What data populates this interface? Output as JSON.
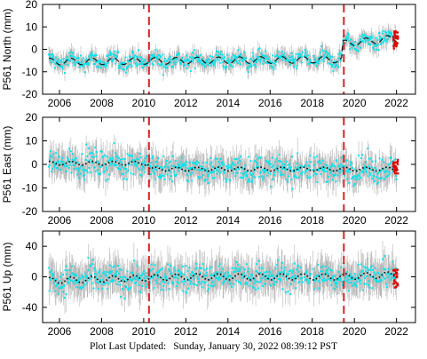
{
  "footer": {
    "label": "Plot Last Updated:",
    "timestamp": "Sunday, January 30, 2022 08:39:12 PST"
  },
  "chart_data": [
    {
      "type": "scatter",
      "ylabel": "P561 North (mm)",
      "xlim": [
        2005.2,
        2022.9
      ],
      "ylim": [
        -20,
        20
      ],
      "yticks": [
        -20,
        -10,
        0,
        10,
        20
      ],
      "xticks": [
        2006,
        2008,
        2010,
        2012,
        2014,
        2016,
        2018,
        2020,
        2022
      ],
      "model_style": "dashed",
      "baseline": [
        {
          "x": 2005.5,
          "y": -5.5
        },
        {
          "x": 2019.4,
          "y": -4.5
        },
        {
          "x": 2019.45,
          "y": 2.5
        },
        {
          "x": 2022.0,
          "y": 5.0
        }
      ],
      "seasonal_amplitude": 1.5,
      "scatter_sd": 1.8,
      "error_bar": 3.0,
      "event_lines": [
        2010.25,
        2019.5
      ],
      "recent_points": {
        "x": [
          2021.85,
          2022.08
        ],
        "y": [
          0.0,
          8.0
        ]
      }
    },
    {
      "type": "scatter",
      "ylabel": "P561 East (mm)",
      "xlim": [
        2005.2,
        2022.9
      ],
      "ylim": [
        -20,
        20
      ],
      "yticks": [
        -20,
        -10,
        0,
        10,
        20
      ],
      "xticks": [
        2006,
        2008,
        2010,
        2012,
        2014,
        2016,
        2018,
        2020,
        2022
      ],
      "model_style": "dotted",
      "baseline": [
        {
          "x": 2005.5,
          "y": 0.5
        },
        {
          "x": 2010.2,
          "y": 0.5
        },
        {
          "x": 2010.3,
          "y": -2.0
        },
        {
          "x": 2022.0,
          "y": -2.0
        }
      ],
      "seasonal_amplitude": 0.8,
      "scatter_sd": 2.8,
      "error_bar": 5.0,
      "event_lines": [
        2010.25,
        2019.5
      ],
      "recent_points": {
        "x": [
          2021.85,
          2022.08
        ],
        "y": [
          -4.0,
          2.0
        ]
      }
    },
    {
      "type": "scatter",
      "ylabel": "P561 Up (mm)",
      "xlim": [
        2005.2,
        2022.9
      ],
      "ylim": [
        -60,
        60
      ],
      "yticks": [
        -40,
        0,
        40
      ],
      "xticks": [
        2006,
        2008,
        2010,
        2012,
        2014,
        2016,
        2018,
        2020,
        2022
      ],
      "model_style": "dotted",
      "baseline": [
        {
          "x": 2005.5,
          "y": -5.0
        },
        {
          "x": 2012.0,
          "y": 0.0
        },
        {
          "x": 2019.4,
          "y": 0.0
        },
        {
          "x": 2022.0,
          "y": 3.0
        }
      ],
      "seasonal_amplitude": 4.0,
      "scatter_sd": 9.0,
      "error_bar": 18.0,
      "event_lines": [
        2010.25,
        2019.5
      ],
      "recent_points": {
        "x": [
          2021.85,
          2022.08
        ],
        "y": [
          -15.0,
          10.0
        ]
      }
    }
  ]
}
